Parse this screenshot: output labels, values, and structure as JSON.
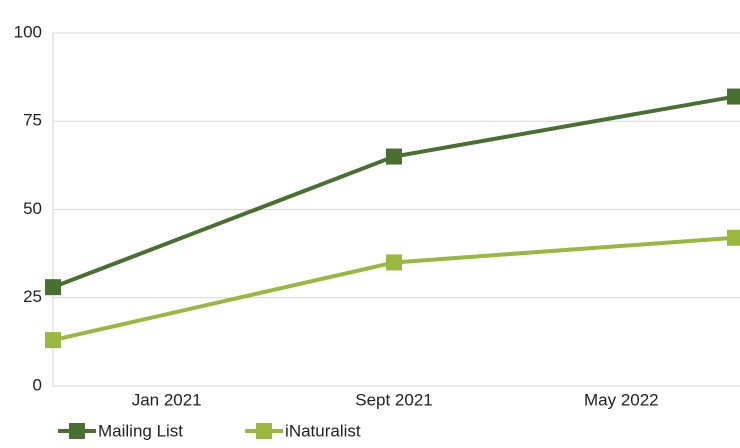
{
  "chart_data": {
    "type": "line",
    "categories": [
      "Jan 2021",
      "Sept 2021",
      "May 2022"
    ],
    "series": [
      {
        "name": "Mailing List",
        "color": "#4a7031",
        "values": [
          28,
          65,
          82
        ]
      },
      {
        "name": "iNaturalist",
        "color": "#9ab83f",
        "values": [
          13,
          35,
          42
        ]
      }
    ],
    "ylim": [
      0,
      100
    ],
    "yticks": [
      0,
      25,
      50,
      75,
      100
    ],
    "grid": true,
    "legend": "bottom-left"
  }
}
